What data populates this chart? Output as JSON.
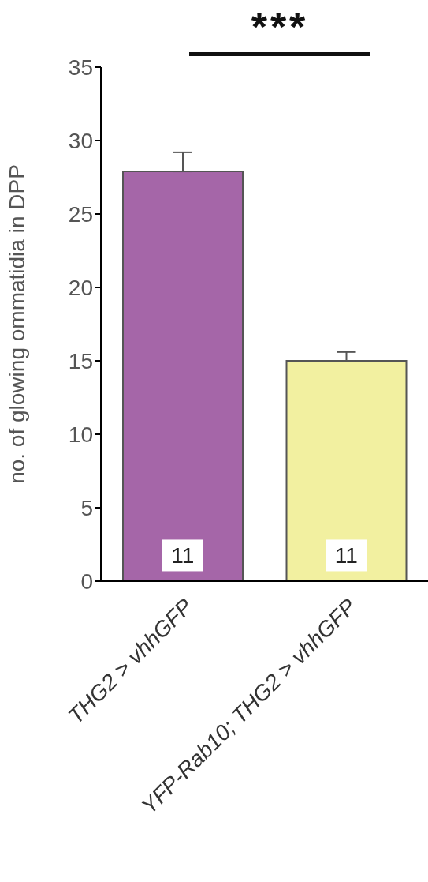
{
  "chart_data": {
    "type": "bar",
    "ylabel": "no. of glowing ommatidia in DPP",
    "categories": [
      "THG2 > vhhGFP",
      "YFP-Rab10; THG2 > vhhGFP"
    ],
    "values": [
      27.9,
      15.0
    ],
    "colors": [
      "#a566a8",
      "#f2f0a0"
    ],
    "errors": [
      [
        27.9,
        29.2
      ],
      [
        15.0,
        15.6
      ]
    ],
    "ylim": [
      0,
      35
    ],
    "yticks": [
      0,
      5,
      10,
      15,
      20,
      25,
      30,
      35
    ],
    "grid": false,
    "legend": false,
    "annotations": [
      "***",
      "11",
      "11"
    ]
  }
}
